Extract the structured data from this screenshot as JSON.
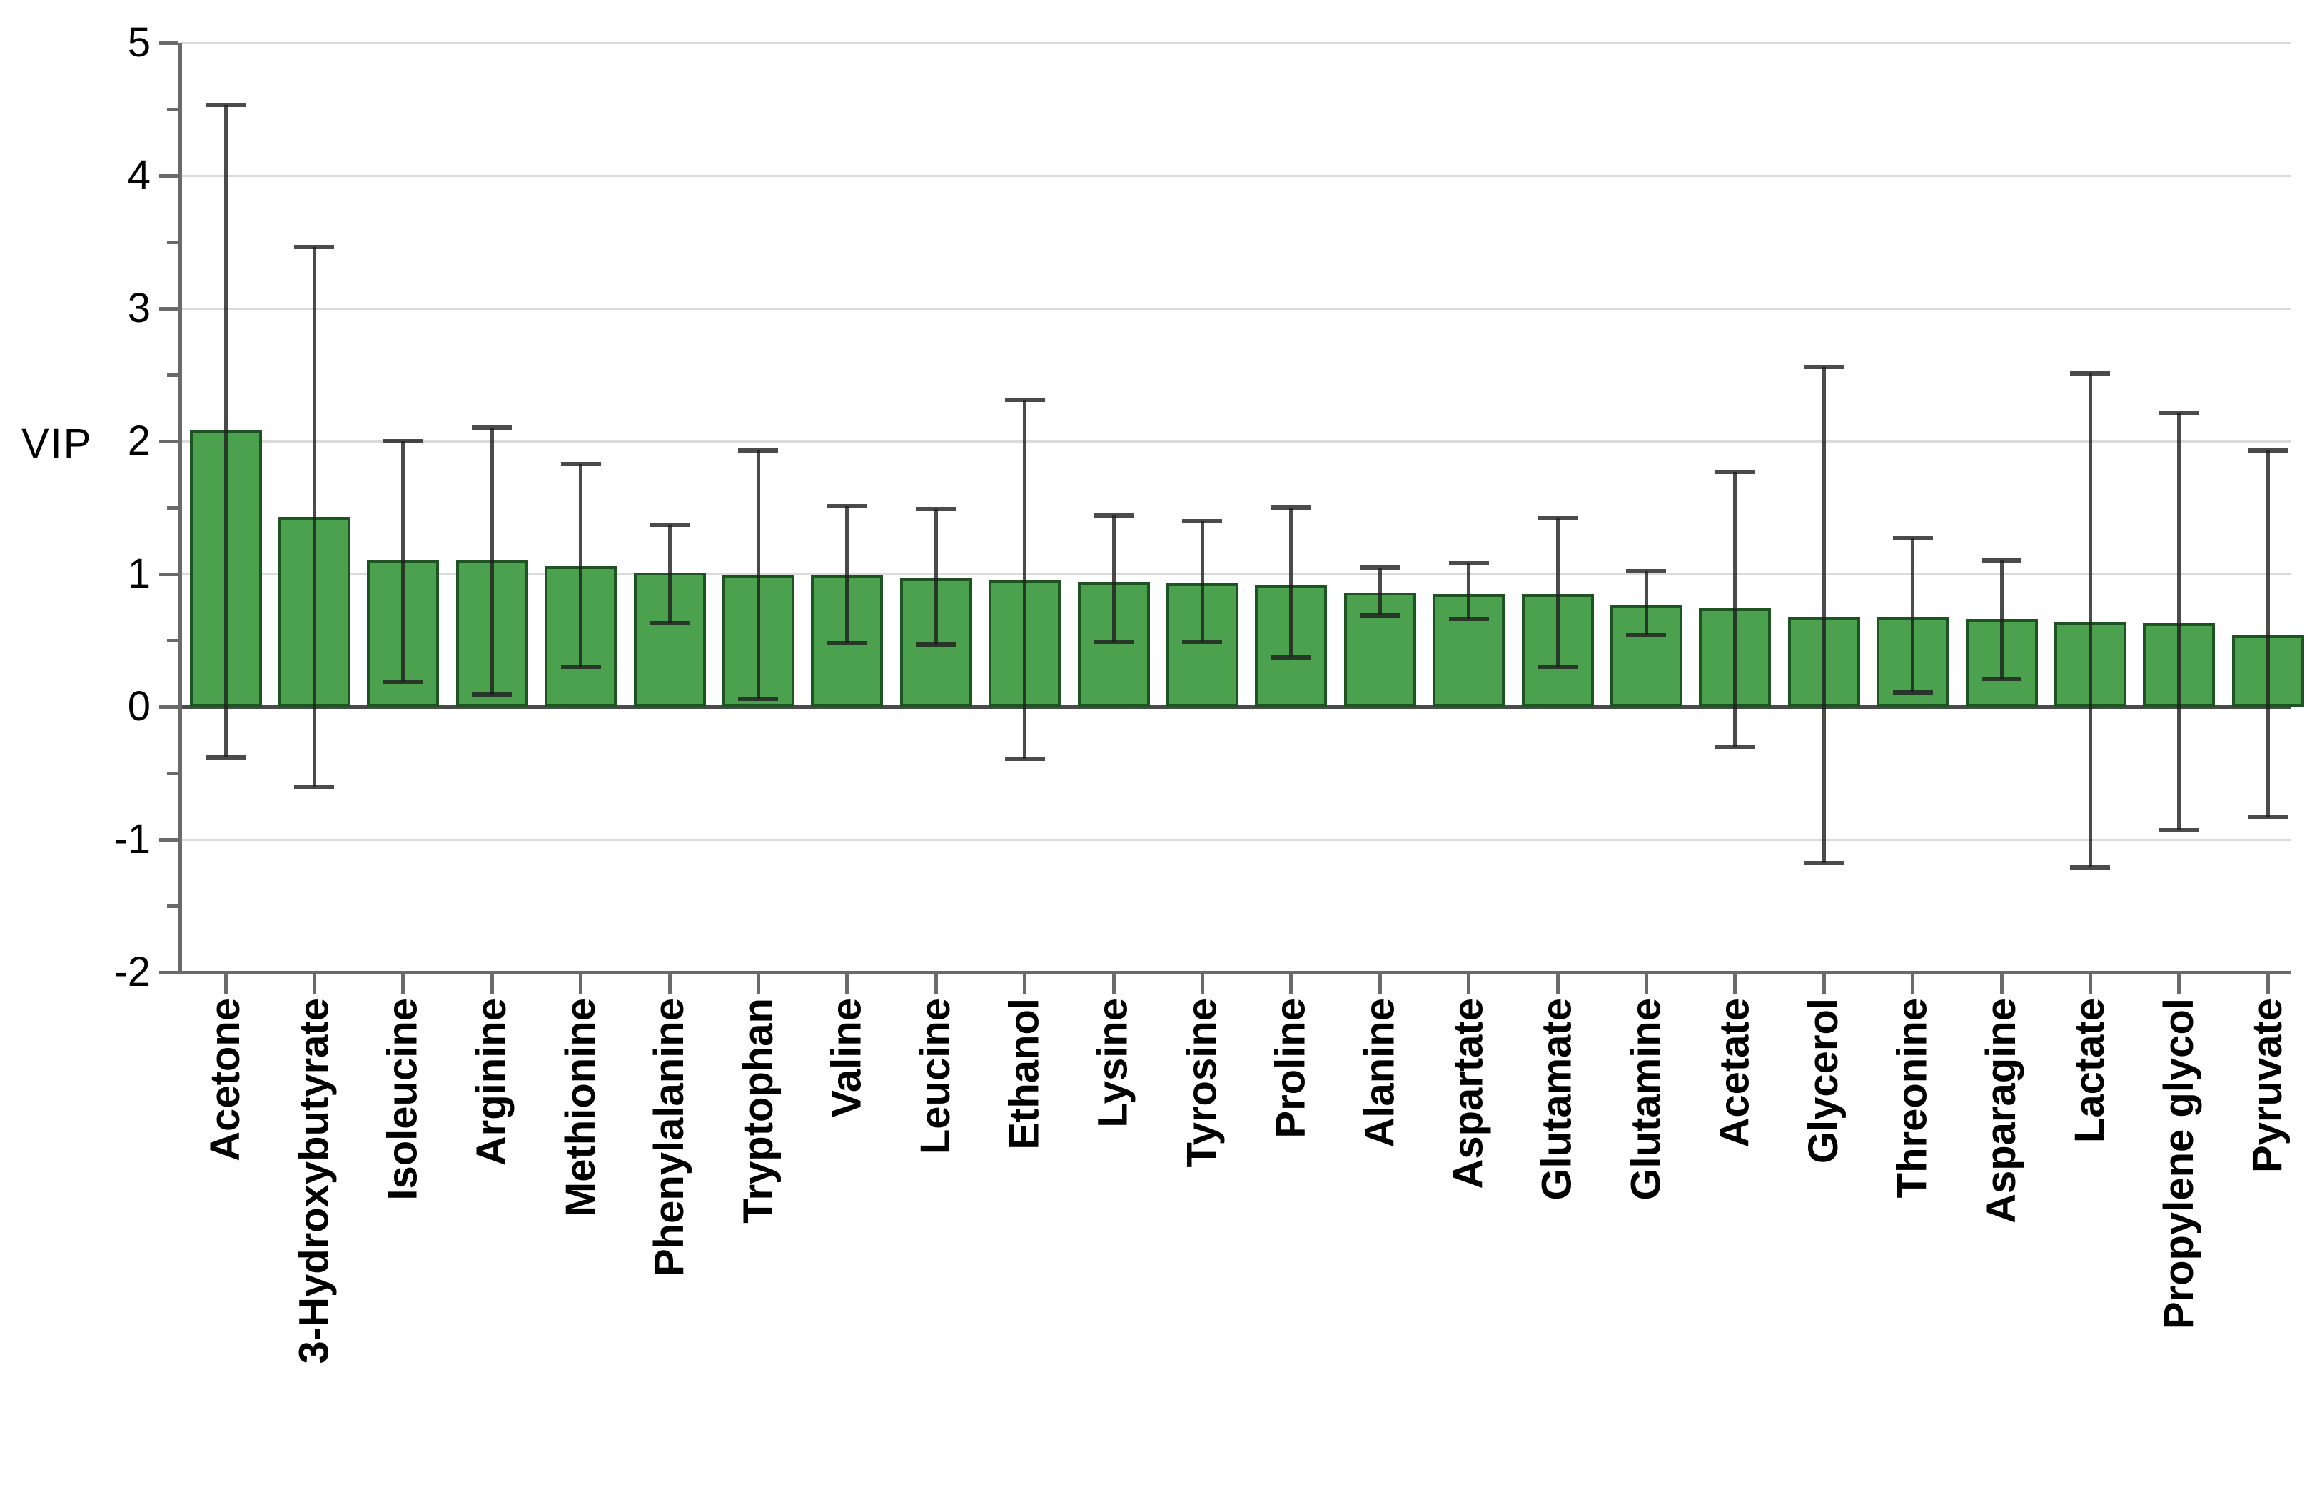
{
  "chart_data": {
    "type": "bar",
    "title": "",
    "ylabel": "VIP",
    "xlabel": "",
    "ylim": [
      -2,
      5
    ],
    "ytick_values": [
      5,
      4,
      3,
      2,
      1,
      0,
      -1,
      -2
    ],
    "ytick_labels": [
      "5",
      "4",
      "3",
      "2",
      "1",
      "0",
      "-1",
      "-2"
    ],
    "minor_ytick_values": [
      4.5,
      3.5,
      2.5,
      1.5,
      0.5,
      -0.5,
      -1.5
    ],
    "grid": "horizontal gridlines at integer y values",
    "legend": "none",
    "categories": [
      "Acetone",
      "3-Hydroxybutyrate",
      "Isoleucine",
      "Arginine",
      "Methionine",
      "Phenylalanine",
      "Tryptophan",
      "Valine",
      "Leucine",
      "Ethanol",
      "Lysine",
      "Tyrosine",
      "Proline",
      "Alanine",
      "Aspartate",
      "Glutamate",
      "Glutamine",
      "Acetate",
      "Glycerol",
      "Threonine",
      "Asparagine",
      "Lactate",
      "Propylene glycol",
      "Pyruvate"
    ],
    "values": [
      2.08,
      1.43,
      1.1,
      1.1,
      1.06,
      1.01,
      0.99,
      0.99,
      0.97,
      0.95,
      0.94,
      0.93,
      0.92,
      0.86,
      0.85,
      0.85,
      0.77,
      0.74,
      0.68,
      0.68,
      0.66,
      0.64,
      0.63,
      0.54
    ],
    "error_low": [
      -0.38,
      -0.6,
      0.19,
      0.09,
      0.3,
      0.63,
      0.06,
      0.48,
      0.47,
      -0.39,
      0.49,
      0.49,
      0.37,
      0.69,
      0.66,
      0.3,
      0.54,
      -0.3,
      -1.18,
      0.11,
      0.21,
      -1.21,
      -0.93,
      -0.83
    ],
    "error_high": [
      4.53,
      3.46,
      2.0,
      2.1,
      1.83,
      1.37,
      1.93,
      1.51,
      1.49,
      2.31,
      1.44,
      1.4,
      1.5,
      1.05,
      1.08,
      1.42,
      1.02,
      1.77,
      2.56,
      1.27,
      1.1,
      2.51,
      2.21,
      1.93
    ],
    "colors": {
      "bar_fill": "#4CA14F",
      "bar_border": "#1E5322",
      "error_bar": "rgba(30,30,30,0.8)",
      "axis": "#6A6A6A",
      "gridline": "#DADADA",
      "text": "#000000",
      "background": "#FFFFFF"
    }
  }
}
